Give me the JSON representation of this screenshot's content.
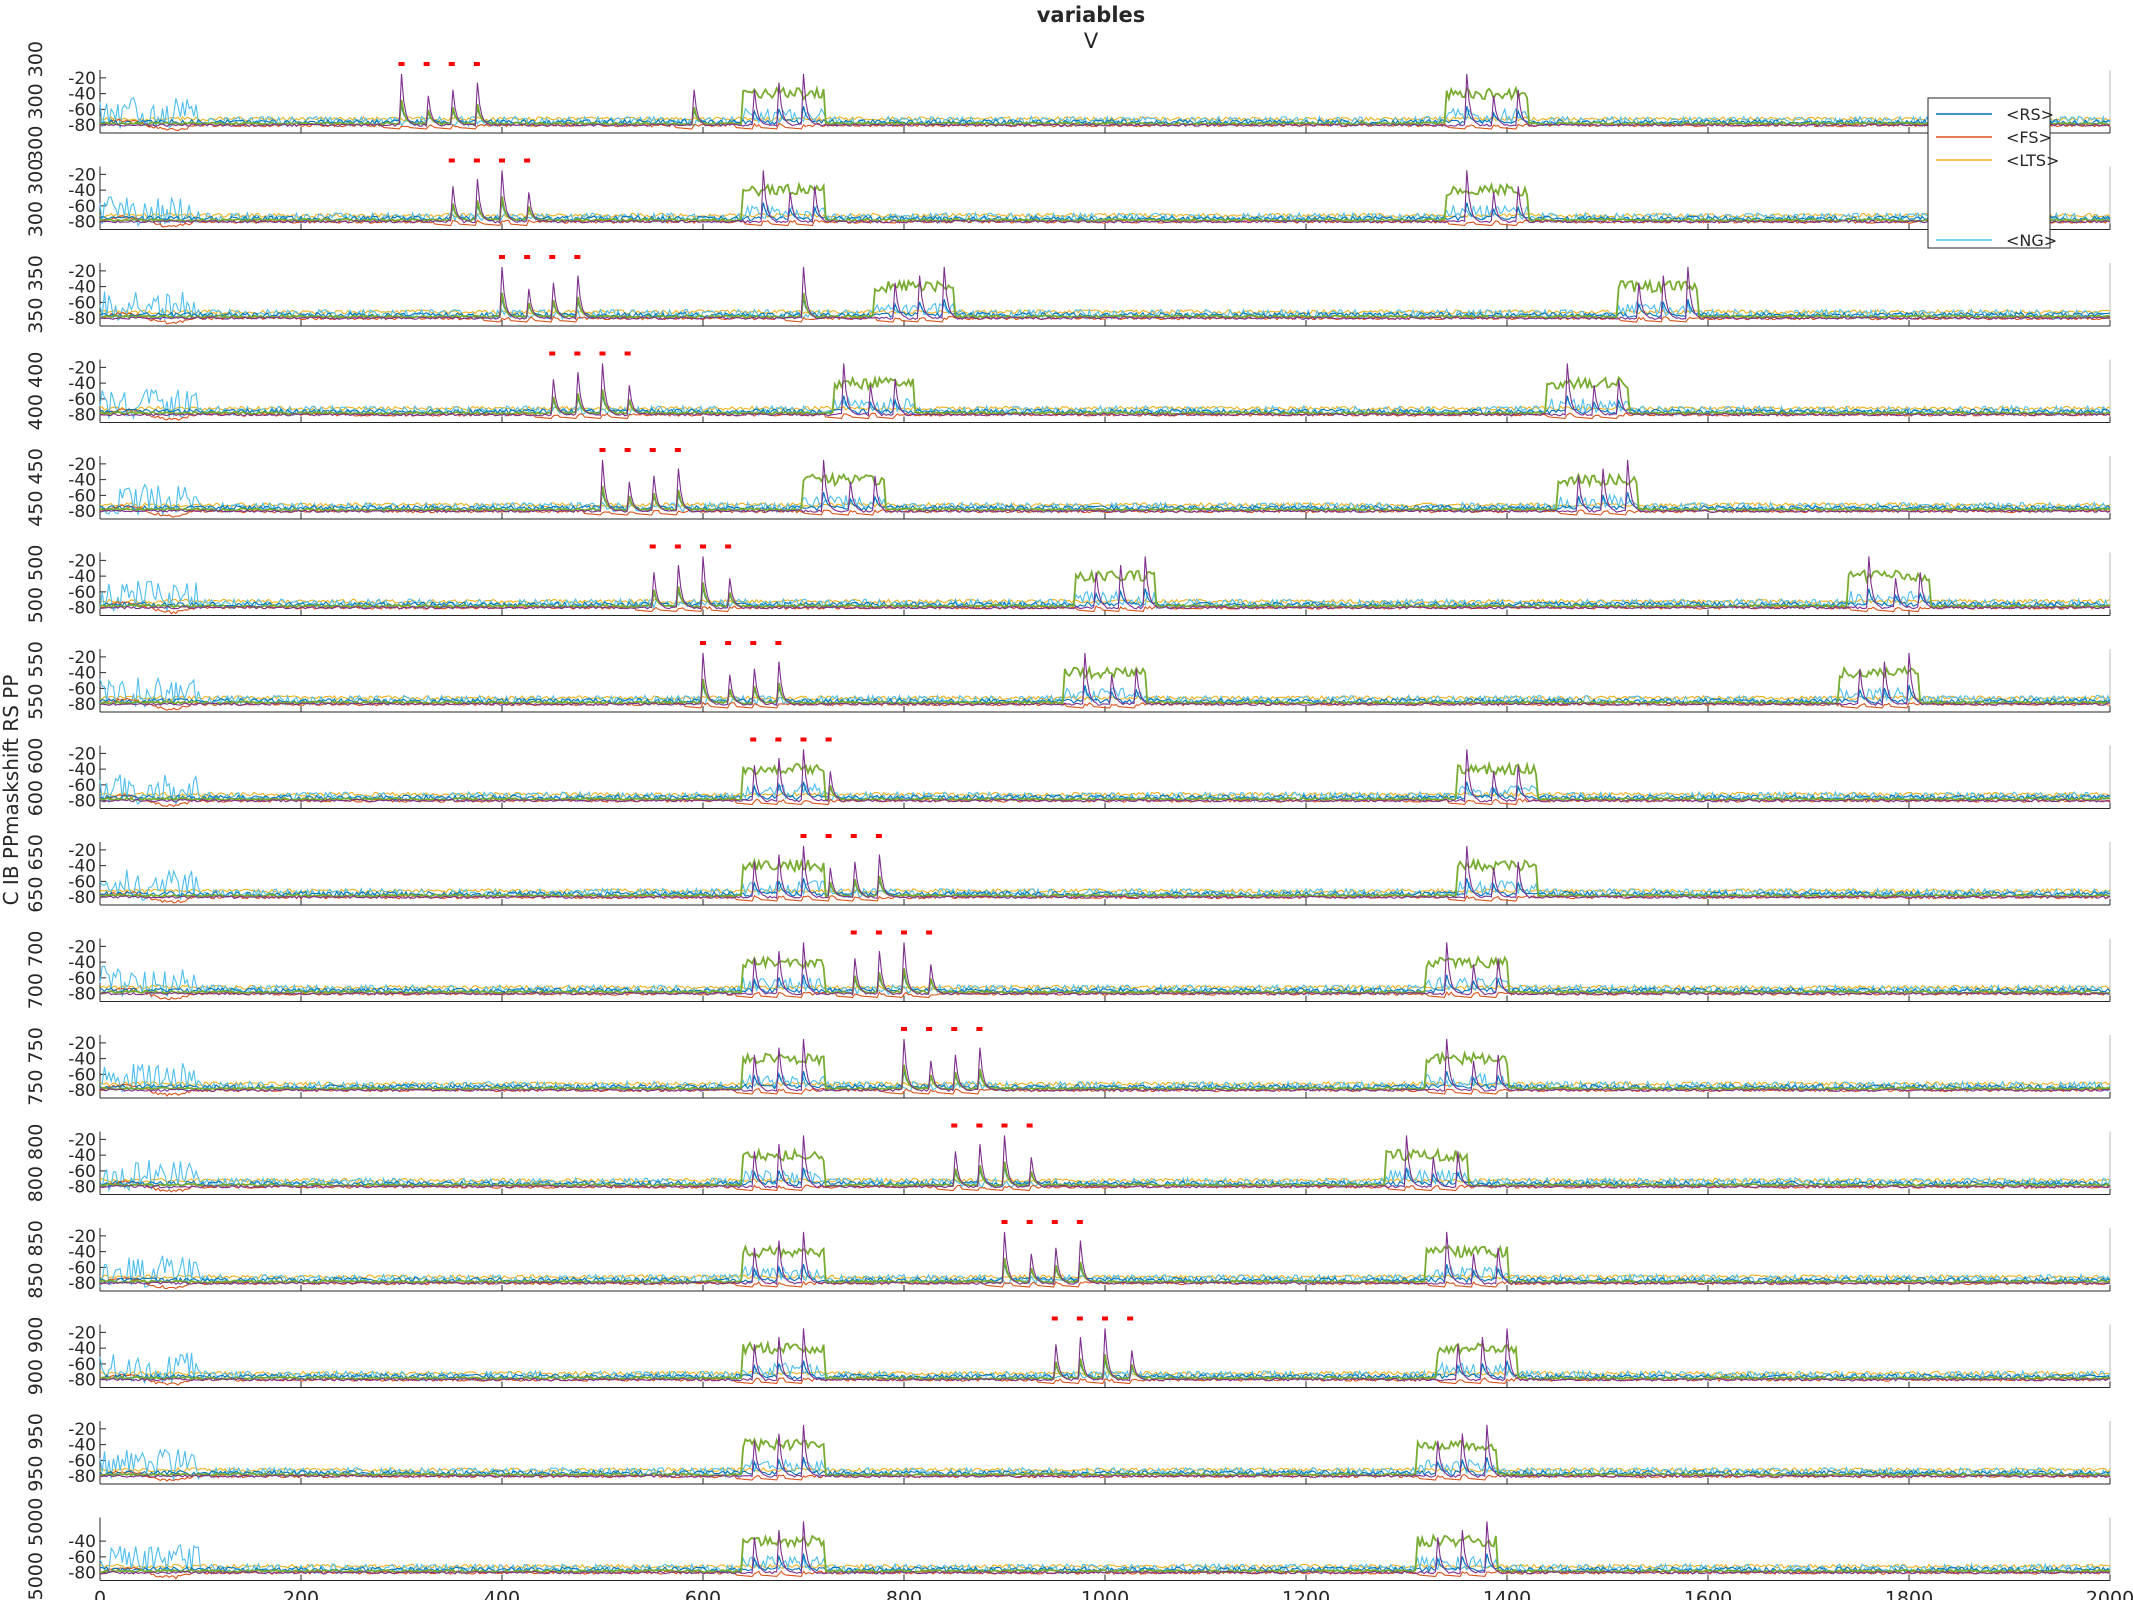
{
  "chart_data": {
    "type": "line",
    "title": [
      "variables",
      "V"
    ],
    "ylabel": "C IB PPmaskshift RS PP",
    "xlim": [
      0,
      2000
    ],
    "x_ticks": [
      0,
      200,
      400,
      600,
      800,
      1000,
      1200,
      1400,
      1600,
      1800,
      2000
    ],
    "ylim": [
      -90,
      -10
    ],
    "y_ticks": [
      -20,
      -40,
      -60,
      -80
    ],
    "last_panel_y_ticks": [
      -40,
      -60,
      -80
    ],
    "legend": {
      "placement": "top-right",
      "entries": [
        {
          "name": "<RS>",
          "color": "#0072BD"
        },
        {
          "name": "<FS>",
          "color": "#D95319"
        },
        {
          "name": "<LTS>",
          "color": "#EDB120"
        },
        {
          "name": "<NG>",
          "color": "#4DBEEE"
        }
      ]
    },
    "extra_series_colors": {
      "IB": "#7E2F8E",
      "PPmask": "#77AC30",
      "stim_markers": "#FF0000"
    },
    "panels": [
      {
        "left_labels": "300 300 300",
        "pulse_times": [
          300,
          325,
          350,
          375
        ],
        "gamma_bursts": [
          [
            640,
            720
          ],
          [
            1340,
            1420
          ]
        ],
        "peaks": [
          300,
          325,
          350,
          375,
          590,
          650,
          675,
          700,
          1360,
          1385,
          1410
        ]
      },
      {
        "left_labels": "300 300",
        "pulse_times": [
          350,
          375,
          400,
          425
        ],
        "gamma_bursts": [
          [
            640,
            720
          ],
          [
            1340,
            1420
          ]
        ],
        "peaks": [
          350,
          375,
          400,
          425,
          660,
          685,
          710,
          1360,
          1385,
          1410
        ]
      },
      {
        "left_labels": "350 350",
        "pulse_times": [
          400,
          425,
          450,
          475
        ],
        "gamma_bursts": [
          [
            770,
            850
          ],
          [
            1510,
            1590
          ]
        ],
        "peaks": [
          400,
          425,
          450,
          475,
          700,
          790,
          815,
          840,
          1530,
          1555,
          1580
        ]
      },
      {
        "left_labels": "400 400",
        "pulse_times": [
          450,
          475,
          500,
          525
        ],
        "gamma_bursts": [
          [
            730,
            810
          ],
          [
            1440,
            1520
          ]
        ],
        "peaks": [
          450,
          475,
          500,
          525,
          740,
          765,
          790,
          1460,
          1485,
          1510
        ]
      },
      {
        "left_labels": "450 450",
        "pulse_times": [
          500,
          525,
          550,
          575
        ],
        "gamma_bursts": [
          [
            700,
            780
          ],
          [
            1450,
            1530
          ]
        ],
        "peaks": [
          500,
          525,
          550,
          575,
          720,
          745,
          770,
          1470,
          1495,
          1520
        ]
      },
      {
        "left_labels": "500 500",
        "pulse_times": [
          550,
          575,
          600,
          625
        ],
        "gamma_bursts": [
          [
            970,
            1050
          ],
          [
            1740,
            1820
          ]
        ],
        "peaks": [
          550,
          575,
          600,
          625,
          990,
          1015,
          1040,
          1760,
          1785,
          1810
        ]
      },
      {
        "left_labels": "550 550",
        "pulse_times": [
          600,
          625,
          650,
          675
        ],
        "gamma_bursts": [
          [
            960,
            1040
          ],
          [
            1730,
            1810
          ]
        ],
        "peaks": [
          600,
          625,
          650,
          675,
          980,
          1005,
          1030,
          1750,
          1775,
          1800
        ]
      },
      {
        "left_labels": "600 600",
        "pulse_times": [
          650,
          675,
          700,
          725
        ],
        "gamma_bursts": [
          [
            640,
            720
          ],
          [
            1350,
            1430
          ]
        ],
        "peaks": [
          650,
          675,
          700,
          725,
          1360,
          1385,
          1410
        ]
      },
      {
        "left_labels": "650 650",
        "pulse_times": [
          700,
          725,
          750,
          775
        ],
        "gamma_bursts": [
          [
            640,
            720
          ],
          [
            1350,
            1430
          ]
        ],
        "peaks": [
          650,
          675,
          700,
          725,
          750,
          775,
          1360,
          1385,
          1410
        ]
      },
      {
        "left_labels": "700 700",
        "pulse_times": [
          750,
          775,
          800,
          825
        ],
        "gamma_bursts": [
          [
            640,
            720
          ],
          [
            1320,
            1400
          ]
        ],
        "peaks": [
          650,
          675,
          700,
          750,
          775,
          800,
          825,
          1340,
          1365,
          1390
        ]
      },
      {
        "left_labels": "750 750",
        "pulse_times": [
          800,
          825,
          850,
          875
        ],
        "gamma_bursts": [
          [
            640,
            720
          ],
          [
            1320,
            1400
          ]
        ],
        "peaks": [
          650,
          675,
          700,
          800,
          825,
          850,
          875,
          1340,
          1365,
          1390
        ]
      },
      {
        "left_labels": "800 800",
        "pulse_times": [
          850,
          875,
          900,
          925
        ],
        "gamma_bursts": [
          [
            640,
            720
          ],
          [
            1280,
            1360
          ]
        ],
        "peaks": [
          650,
          675,
          700,
          850,
          875,
          900,
          925,
          1300,
          1325,
          1350
        ]
      },
      {
        "left_labels": "850 850",
        "pulse_times": [
          900,
          925,
          950,
          975
        ],
        "gamma_bursts": [
          [
            640,
            720
          ],
          [
            1320,
            1400
          ]
        ],
        "peaks": [
          650,
          675,
          700,
          900,
          925,
          950,
          975,
          1340,
          1365,
          1390
        ]
      },
      {
        "left_labels": "900 900",
        "pulse_times": [
          950,
          975,
          1000,
          1025
        ],
        "gamma_bursts": [
          [
            640,
            720
          ],
          [
            1330,
            1410
          ]
        ],
        "peaks": [
          650,
          675,
          700,
          950,
          975,
          1000,
          1025,
          1350,
          1375,
          1400
        ]
      },
      {
        "left_labels": "950 950",
        "pulse_times": [],
        "gamma_bursts": [
          [
            640,
            720
          ],
          [
            1310,
            1390
          ]
        ],
        "peaks": [
          650,
          675,
          700,
          1330,
          1355,
          1380
        ]
      },
      {
        "left_labels": "5000 5000",
        "pulse_times": [],
        "gamma_bursts": [
          [
            640,
            720
          ],
          [
            1310,
            1390
          ]
        ],
        "peaks": [
          650,
          675,
          700,
          1330,
          1355,
          1380
        ]
      }
    ]
  }
}
